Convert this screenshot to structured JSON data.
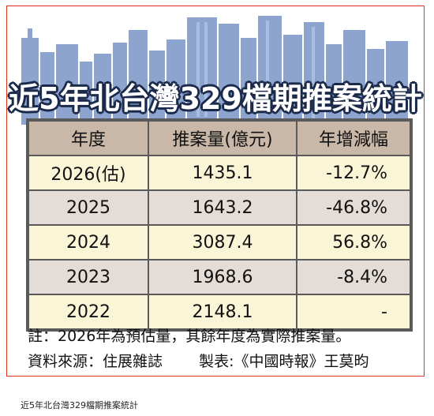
{
  "title": "近5年北台灣329檔期推案統計",
  "table": {
    "headers": [
      "年度",
      "推案量(億元)",
      "年增減幅"
    ],
    "rows": [
      {
        "year": "2026(估)",
        "amount": "1435.1",
        "change": "-12.7%"
      },
      {
        "year": "2025",
        "amount": "1643.2",
        "change": "-46.8%"
      },
      {
        "year": "2024",
        "amount": "3087.4",
        "change": "56.8%"
      },
      {
        "year": "2023",
        "amount": "1968.6",
        "change": "-8.4%"
      },
      {
        "year": "2022",
        "amount": "2148.1",
        "change": "-"
      }
    ]
  },
  "notes": {
    "note": "註：2026年為預估量，其餘年度為實際推案量。",
    "source": "資料來源：住展雜誌",
    "credit": "製表:《中國時報》王莫昀"
  },
  "caption": "近5年北台灣329檔期推案統計",
  "colors": {
    "header_bg": "#c9b8a8",
    "row_light": "#fbf5d8",
    "row_shaded": "#e4dcd6",
    "skyline": "#8da4cf",
    "frame": "#e0301e"
  }
}
